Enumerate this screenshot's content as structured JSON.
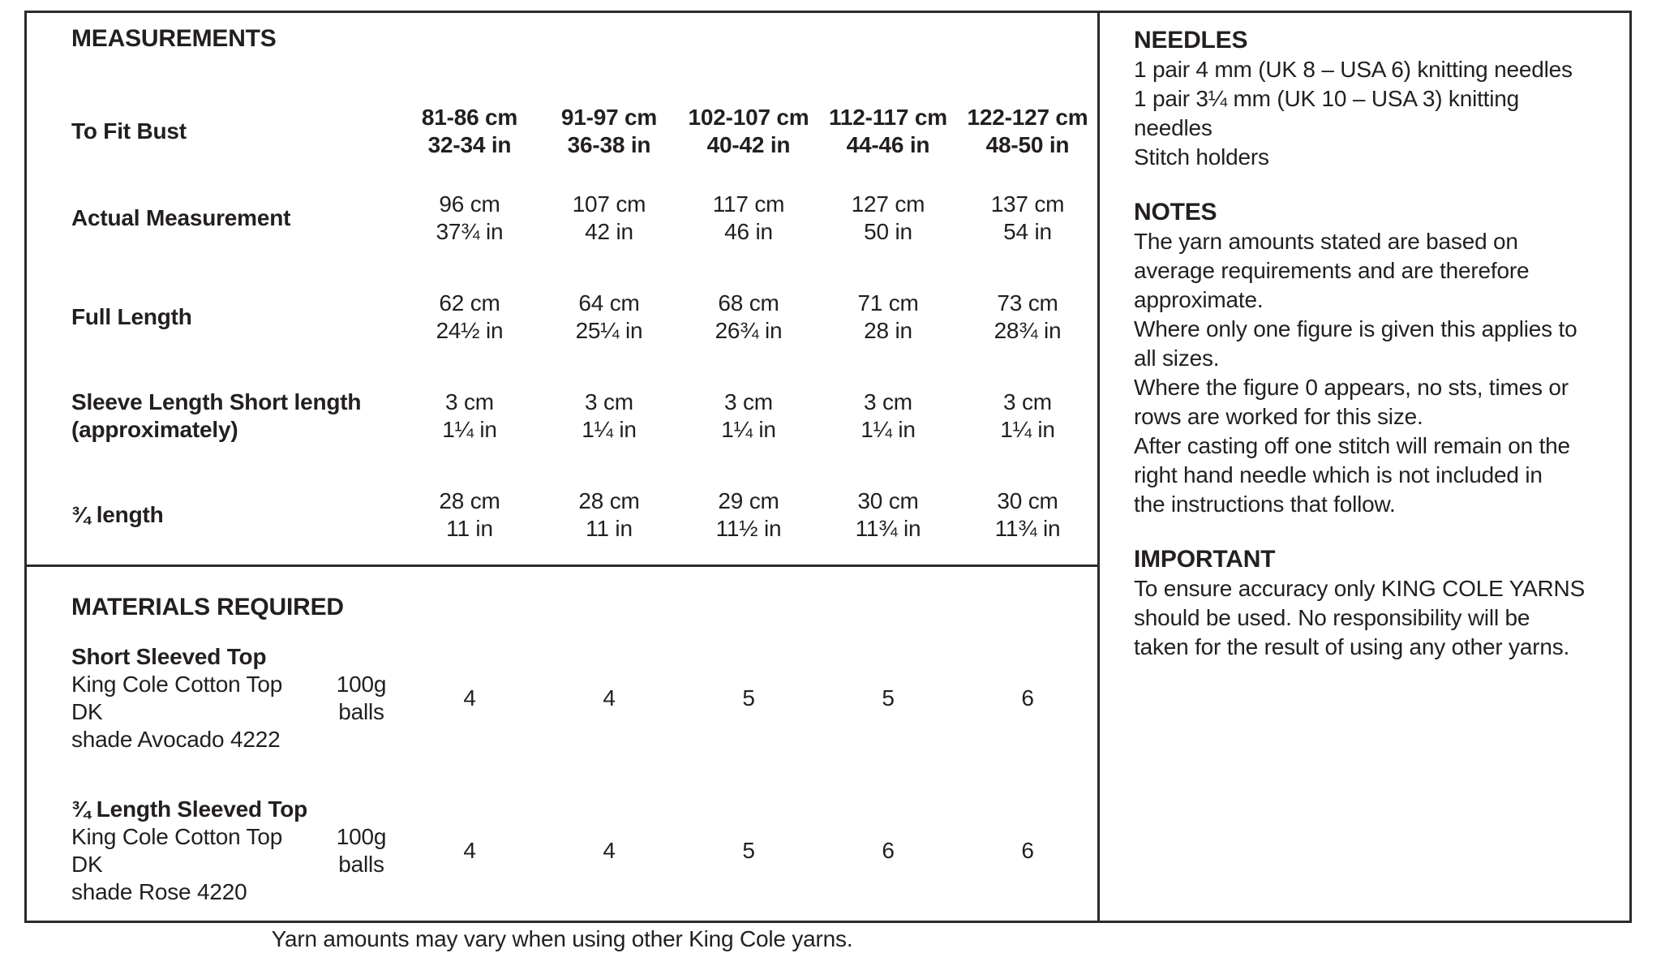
{
  "measurements": {
    "title": "MEASUREMENTS",
    "to_fit_bust": {
      "label": "To Fit Bust",
      "columns": [
        {
          "cm": "81-86 cm",
          "inch": "32-34 in"
        },
        {
          "cm": "91-97 cm",
          "inch": "36-38 in"
        },
        {
          "cm": "102-107 cm",
          "inch": "40-42 in"
        },
        {
          "cm": "112-117 cm",
          "inch": "44-46 in"
        },
        {
          "cm": "122-127 cm",
          "inch": "48-50 in"
        }
      ]
    },
    "rows": [
      {
        "label": "Actual Measurement",
        "values": [
          {
            "cm": "96 cm",
            "inch": "37¾ in"
          },
          {
            "cm": "107 cm",
            "inch": "42 in"
          },
          {
            "cm": "117 cm",
            "inch": "46 in"
          },
          {
            "cm": "127 cm",
            "inch": "50 in"
          },
          {
            "cm": "137 cm",
            "inch": "54 in"
          }
        ]
      },
      {
        "label": "Full Length",
        "values": [
          {
            "cm": "62 cm",
            "inch": "24½ in"
          },
          {
            "cm": "64 cm",
            "inch": "25¼ in"
          },
          {
            "cm": "68 cm",
            "inch": "26¾ in"
          },
          {
            "cm": "71 cm",
            "inch": "28 in"
          },
          {
            "cm": "73 cm",
            "inch": "28¾ in"
          }
        ]
      },
      {
        "label": "Sleeve Length Short length (approximately)",
        "values": [
          {
            "cm": "3 cm",
            "inch": "1¼ in"
          },
          {
            "cm": "3 cm",
            "inch": "1¼ in"
          },
          {
            "cm": "3 cm",
            "inch": "1¼ in"
          },
          {
            "cm": "3 cm",
            "inch": "1¼ in"
          },
          {
            "cm": "3 cm",
            "inch": "1¼ in"
          }
        ]
      },
      {
        "label": "¾ length",
        "values": [
          {
            "cm": "28 cm",
            "inch": "11 in"
          },
          {
            "cm": "28 cm",
            "inch": "11 in"
          },
          {
            "cm": "29 cm",
            "inch": "11½ in"
          },
          {
            "cm": "30 cm",
            "inch": "11¾ in"
          },
          {
            "cm": "30 cm",
            "inch": "11¾ in"
          }
        ]
      }
    ]
  },
  "materials": {
    "title": "MATERIALS REQUIRED",
    "items": [
      {
        "name": "Short Sleeved Top",
        "line2": "King Cole Cotton Top DK",
        "line3": "shade Avocado 4222",
        "unit_line1": "100g",
        "unit_line2": "balls",
        "quantities": [
          "4",
          "4",
          "5",
          "5",
          "6"
        ]
      },
      {
        "name": "¾ Length Sleeved Top",
        "line2": "King Cole Cotton Top DK",
        "line3": "shade Rose 4220",
        "unit_line1": "100g",
        "unit_line2": "balls",
        "quantities": [
          "4",
          "4",
          "5",
          "6",
          "6"
        ]
      }
    ],
    "note": "Yarn amounts may vary when using other King Cole yarns."
  },
  "needles": {
    "title": "NEEDLES",
    "lines": [
      "1 pair 4 mm (UK 8 – USA 6) knitting needles",
      "1 pair 3¼ mm (UK 10 – USA 3) knitting",
      "needles",
      "Stitch holders"
    ]
  },
  "notes": {
    "title": "NOTES",
    "lines": [
      "The yarn amounts stated are based on",
      "average requirements and are therefore",
      "approximate.",
      "Where only one figure is given this applies to",
      "all sizes.",
      "Where the figure 0 appears, no sts, times or",
      "rows are worked for this size.",
      "After casting off one stitch will remain on the",
      "right hand needle which is not included in",
      "the instructions that follow."
    ]
  },
  "important": {
    "title": "IMPORTANT",
    "lines": [
      "To ensure accuracy only KING COLE YARNS",
      "should be used. No responsibility will be",
      "taken for the result of using any other yarns."
    ]
  }
}
